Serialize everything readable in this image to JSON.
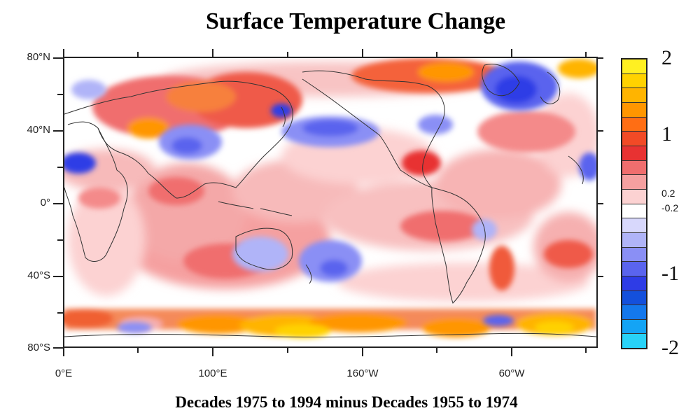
{
  "title": "Surface Temperature Change",
  "subtitle": "Decades 1975 to 1994  minus  Decades 1955 to 1974",
  "latitude_labels": [
    "80°N",
    "40°N",
    "0°",
    "40°S",
    "80°S"
  ],
  "longitude_labels": [
    "0°E",
    "100°E",
    "160°W",
    "60°W"
  ],
  "colorbar": {
    "colors": [
      "#fff022",
      "#ffd200",
      "#ffb400",
      "#ff9600",
      "#ff6e14",
      "#f24a26",
      "#e83232",
      "#f06e6e",
      "#f5a0a0",
      "#fcd2d2",
      "#ffffff",
      "#d8d8fc",
      "#b0b4f8",
      "#8a8ff5",
      "#5a64ee",
      "#2e3ce6",
      "#1450dc",
      "#1478ec",
      "#14a4f5",
      "#28d2f8"
    ],
    "labels": [
      "2",
      "1",
      "0.2",
      "-0.2",
      "-1",
      "-2"
    ],
    "label_colors_meaning": "yellow/orange/red = warming, blue/cyan = cooling"
  }
}
